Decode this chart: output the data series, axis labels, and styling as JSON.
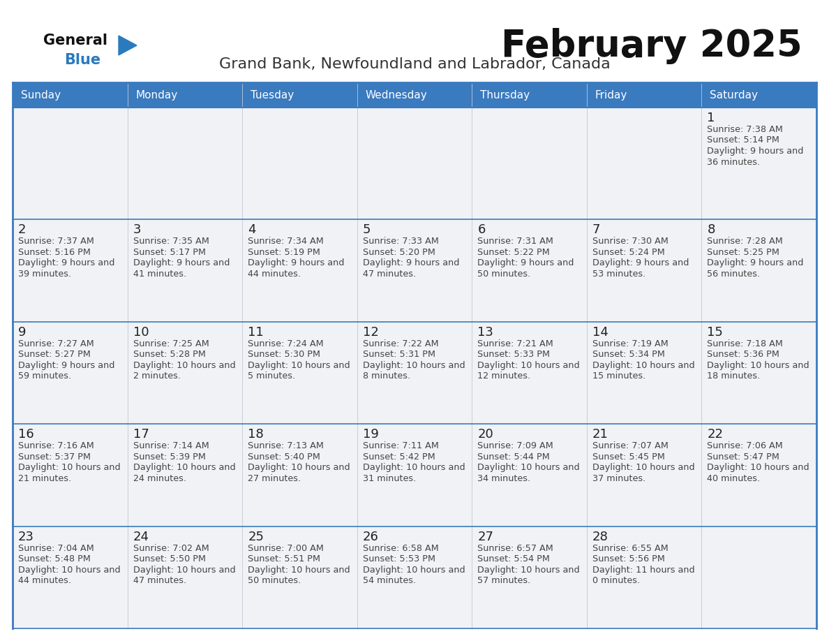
{
  "title": "February 2025",
  "subtitle": "Grand Bank, Newfoundland and Labrador, Canada",
  "days_of_week": [
    "Sunday",
    "Monday",
    "Tuesday",
    "Wednesday",
    "Thursday",
    "Friday",
    "Saturday"
  ],
  "header_bg": "#3a7abf",
  "header_text": "#ffffff",
  "cell_bg": "#f0f2f5",
  "cell_bg_white": "#ffffff",
  "border_color": "#3a7abf",
  "row_sep_color": "#3a7abf",
  "day_num_color": "#222222",
  "info_color": "#444444",
  "title_color": "#111111",
  "subtitle_color": "#333333",
  "logo_general_color": "#111111",
  "logo_blue_color": "#2a7abf",
  "logo_tri_color": "#2a7abf",
  "weeks": [
    {
      "days": [
        {
          "day": null,
          "sunrise": null,
          "sunset": null,
          "daylight": null
        },
        {
          "day": null,
          "sunrise": null,
          "sunset": null,
          "daylight": null
        },
        {
          "day": null,
          "sunrise": null,
          "sunset": null,
          "daylight": null
        },
        {
          "day": null,
          "sunrise": null,
          "sunset": null,
          "daylight": null
        },
        {
          "day": null,
          "sunrise": null,
          "sunset": null,
          "daylight": null
        },
        {
          "day": null,
          "sunrise": null,
          "sunset": null,
          "daylight": null
        },
        {
          "day": 1,
          "sunrise": "7:38 AM",
          "sunset": "5:14 PM",
          "daylight": "9 hours and 36 minutes"
        }
      ]
    },
    {
      "days": [
        {
          "day": 2,
          "sunrise": "7:37 AM",
          "sunset": "5:16 PM",
          "daylight": "9 hours and 39 minutes"
        },
        {
          "day": 3,
          "sunrise": "7:35 AM",
          "sunset": "5:17 PM",
          "daylight": "9 hours and 41 minutes"
        },
        {
          "day": 4,
          "sunrise": "7:34 AM",
          "sunset": "5:19 PM",
          "daylight": "9 hours and 44 minutes"
        },
        {
          "day": 5,
          "sunrise": "7:33 AM",
          "sunset": "5:20 PM",
          "daylight": "9 hours and 47 minutes"
        },
        {
          "day": 6,
          "sunrise": "7:31 AM",
          "sunset": "5:22 PM",
          "daylight": "9 hours and 50 minutes"
        },
        {
          "day": 7,
          "sunrise": "7:30 AM",
          "sunset": "5:24 PM",
          "daylight": "9 hours and 53 minutes"
        },
        {
          "day": 8,
          "sunrise": "7:28 AM",
          "sunset": "5:25 PM",
          "daylight": "9 hours and 56 minutes"
        }
      ]
    },
    {
      "days": [
        {
          "day": 9,
          "sunrise": "7:27 AM",
          "sunset": "5:27 PM",
          "daylight": "9 hours and 59 minutes"
        },
        {
          "day": 10,
          "sunrise": "7:25 AM",
          "sunset": "5:28 PM",
          "daylight": "10 hours and 2 minutes"
        },
        {
          "day": 11,
          "sunrise": "7:24 AM",
          "sunset": "5:30 PM",
          "daylight": "10 hours and 5 minutes"
        },
        {
          "day": 12,
          "sunrise": "7:22 AM",
          "sunset": "5:31 PM",
          "daylight": "10 hours and 8 minutes"
        },
        {
          "day": 13,
          "sunrise": "7:21 AM",
          "sunset": "5:33 PM",
          "daylight": "10 hours and 12 minutes"
        },
        {
          "day": 14,
          "sunrise": "7:19 AM",
          "sunset": "5:34 PM",
          "daylight": "10 hours and 15 minutes"
        },
        {
          "day": 15,
          "sunrise": "7:18 AM",
          "sunset": "5:36 PM",
          "daylight": "10 hours and 18 minutes"
        }
      ]
    },
    {
      "days": [
        {
          "day": 16,
          "sunrise": "7:16 AM",
          "sunset": "5:37 PM",
          "daylight": "10 hours and 21 minutes"
        },
        {
          "day": 17,
          "sunrise": "7:14 AM",
          "sunset": "5:39 PM",
          "daylight": "10 hours and 24 minutes"
        },
        {
          "day": 18,
          "sunrise": "7:13 AM",
          "sunset": "5:40 PM",
          "daylight": "10 hours and 27 minutes"
        },
        {
          "day": 19,
          "sunrise": "7:11 AM",
          "sunset": "5:42 PM",
          "daylight": "10 hours and 31 minutes"
        },
        {
          "day": 20,
          "sunrise": "7:09 AM",
          "sunset": "5:44 PM",
          "daylight": "10 hours and 34 minutes"
        },
        {
          "day": 21,
          "sunrise": "7:07 AM",
          "sunset": "5:45 PM",
          "daylight": "10 hours and 37 minutes"
        },
        {
          "day": 22,
          "sunrise": "7:06 AM",
          "sunset": "5:47 PM",
          "daylight": "10 hours and 40 minutes"
        }
      ]
    },
    {
      "days": [
        {
          "day": 23,
          "sunrise": "7:04 AM",
          "sunset": "5:48 PM",
          "daylight": "10 hours and 44 minutes"
        },
        {
          "day": 24,
          "sunrise": "7:02 AM",
          "sunset": "5:50 PM",
          "daylight": "10 hours and 47 minutes"
        },
        {
          "day": 25,
          "sunrise": "7:00 AM",
          "sunset": "5:51 PM",
          "daylight": "10 hours and 50 minutes"
        },
        {
          "day": 26,
          "sunrise": "6:58 AM",
          "sunset": "5:53 PM",
          "daylight": "10 hours and 54 minutes"
        },
        {
          "day": 27,
          "sunrise": "6:57 AM",
          "sunset": "5:54 PM",
          "daylight": "10 hours and 57 minutes"
        },
        {
          "day": 28,
          "sunrise": "6:55 AM",
          "sunset": "5:56 PM",
          "daylight": "11 hours and 0 minutes"
        },
        {
          "day": null,
          "sunrise": null,
          "sunset": null,
          "daylight": null
        }
      ]
    }
  ]
}
